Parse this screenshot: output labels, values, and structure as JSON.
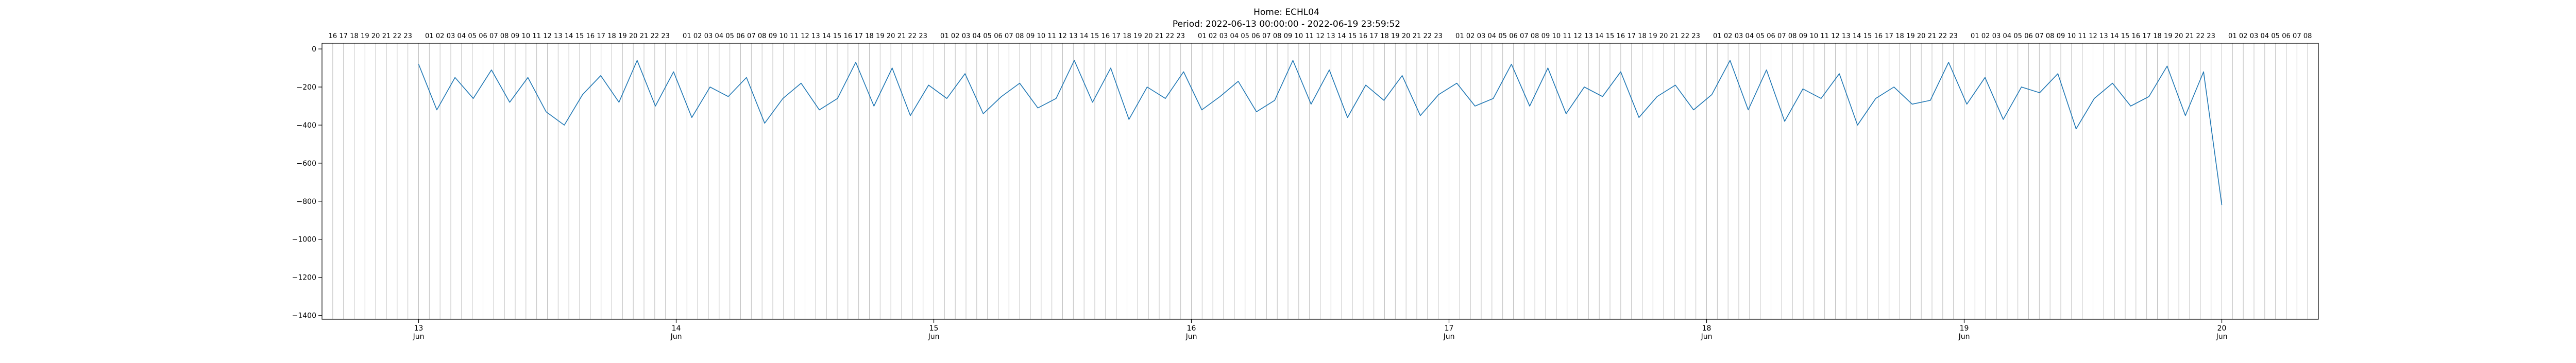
{
  "chart_data": {
    "type": "line",
    "title": "Home: ECHL04",
    "subtitle": "Period: 2022-06-13 00:00:00 - 2022-06-19 23:59:52",
    "xlabel": "",
    "ylabel": "",
    "grid": "vertical-hourly",
    "legend": "none",
    "x_range": [
      "2022-06-12 15:00",
      "2022-06-20 09:00"
    ],
    "ylim": [
      -1420,
      30
    ],
    "y_ticks": [
      0,
      -200,
      -400,
      -600,
      -800,
      -1000,
      -1200,
      -1400
    ],
    "y_tick_labels": [
      "0",
      "−200",
      "−400",
      "−600",
      "−800",
      "−1000",
      "−1200",
      "−1400"
    ],
    "x_major_ticks": [
      {
        "date": "2022-06-13",
        "day": "13",
        "month": "Jun"
      },
      {
        "date": "2022-06-14",
        "day": "14",
        "month": "Jun"
      },
      {
        "date": "2022-06-15",
        "day": "15",
        "month": "Jun"
      },
      {
        "date": "2022-06-16",
        "day": "16",
        "month": "Jun"
      },
      {
        "date": "2022-06-17",
        "day": "17",
        "month": "Jun"
      },
      {
        "date": "2022-06-18",
        "day": "18",
        "month": "Jun"
      },
      {
        "date": "2022-06-19",
        "day": "19",
        "month": "Jun"
      },
      {
        "date": "2022-06-20",
        "day": "20",
        "month": "Jun"
      }
    ],
    "top_hour_labels": {
      "start": "2022-06-12 16:00",
      "end": "2022-06-20 08:00",
      "omit_hour": "00"
    },
    "series": [
      {
        "color": "#1f77b4",
        "x_start": "2022-06-13 00:00",
        "x_step_minutes": 15,
        "values": [
          -80,
          -320,
          -150,
          -260,
          -110,
          -280,
          -150,
          -330,
          -400,
          -240,
          -140,
          -280,
          -60,
          -300,
          -120,
          -360,
          -200,
          -250,
          -150,
          -390,
          -260,
          -180,
          -320,
          -260,
          -70,
          -300,
          -100,
          -350,
          -190,
          -260,
          -130,
          -340,
          -250,
          -180,
          -310,
          -260,
          -60,
          -280,
          -100,
          -370,
          -200,
          -260,
          -120,
          -320,
          -250,
          -170,
          -330,
          -270,
          -60,
          -290,
          -110,
          -360,
          -190,
          -270,
          -140,
          -350,
          -240,
          -180,
          -300,
          -260,
          -80,
          -300,
          -100,
          -340,
          -200,
          -250,
          -120,
          -360,
          -250,
          -190,
          -320,
          -240,
          -60,
          -320,
          -110,
          -380,
          -210,
          -260,
          -130,
          -400,
          -260,
          -200,
          -290,
          -270,
          -70,
          -290,
          -150,
          -370,
          -200,
          -230,
          -130,
          -420,
          -260,
          -180,
          -300,
          -250,
          -90,
          -350,
          -120,
          -820
        ]
      }
    ]
  }
}
